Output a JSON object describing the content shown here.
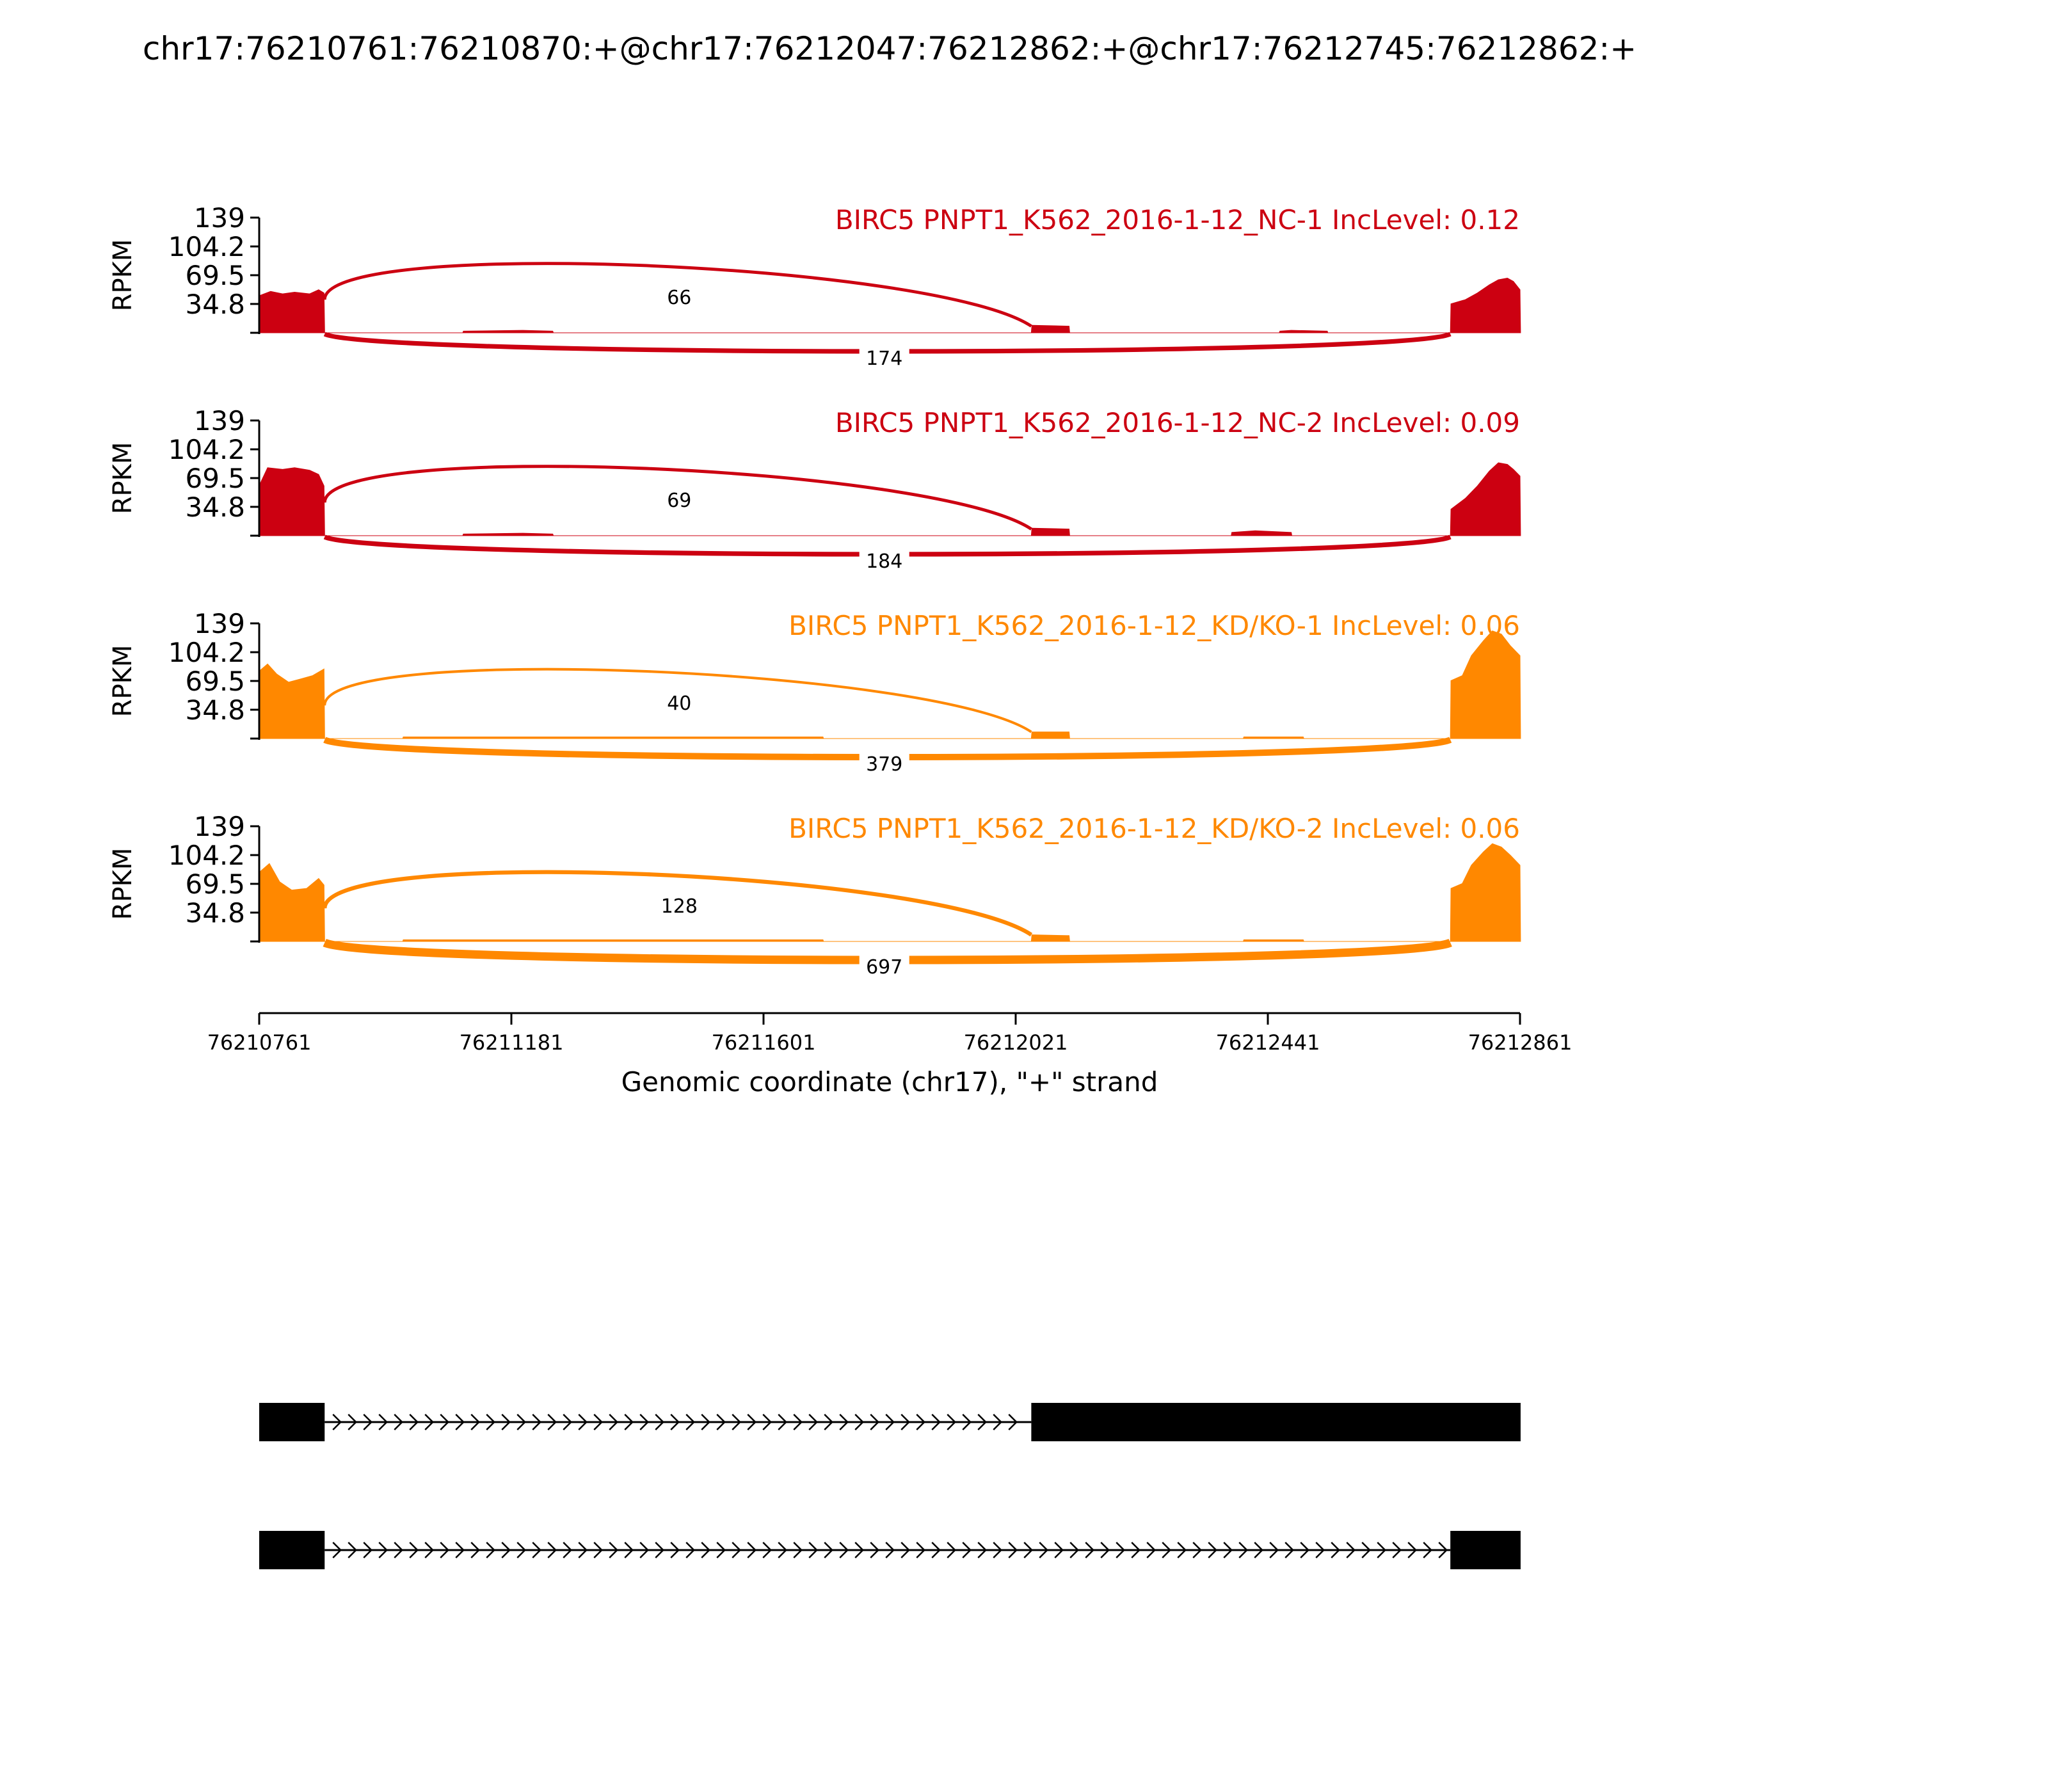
{
  "title": "chr17:76210761:76210870:+@chr17:76212047:76212862:+@chr17:76212745:76212862:+",
  "chart_data": {
    "type": "area",
    "xlabel": "Genomic coordinate (chr17), \"+\" strand",
    "ylabel": "RPKM",
    "xlim": [
      76210761,
      76212861
    ],
    "x_ticks": [
      "76210761",
      "76211181",
      "76211601",
      "76212021",
      "76212441",
      "76212861"
    ],
    "ylim": [
      0,
      139
    ],
    "y_ticks": [
      "139",
      "104.2",
      "69.5",
      "34.8"
    ],
    "y_tick_values": [
      139,
      104.2,
      69.5,
      34.8
    ],
    "exons": {
      "upstream": [
        76210761,
        76210870
      ],
      "skipped": [
        76212047,
        76212862
      ],
      "downstream": [
        76212745,
        76212862
      ]
    },
    "tracks": [
      {
        "label": "BIRC5 PNPT1_K562_2016-1-12_NC-1 IncLevel: 0.12",
        "color": "#cc0011",
        "junctions": [
          {
            "from": 76210870,
            "to": 76212047,
            "count": "66",
            "side": "above"
          },
          {
            "from": 76210870,
            "to": 76212745,
            "count": "174",
            "side": "below"
          }
        ],
        "coverage": [
          {
            "x": 76210761,
            "y": 0
          },
          {
            "x": 76210762,
            "y": 45
          },
          {
            "x": 76210780,
            "y": 50
          },
          {
            "x": 76210800,
            "y": 47
          },
          {
            "x": 76210820,
            "y": 49
          },
          {
            "x": 76210845,
            "y": 47
          },
          {
            "x": 76210860,
            "y": 52
          },
          {
            "x": 76210869,
            "y": 48
          },
          {
            "x": 76210870,
            "y": 0
          },
          {
            "x": 76211100,
            "y": 0
          },
          {
            "x": 76211101,
            "y": 2
          },
          {
            "x": 76211200,
            "y": 3
          },
          {
            "x": 76211250,
            "y": 2
          },
          {
            "x": 76211251,
            "y": 0
          },
          {
            "x": 76212047,
            "y": 0
          },
          {
            "x": 76212048,
            "y": 9
          },
          {
            "x": 76212110,
            "y": 8
          },
          {
            "x": 76212111,
            "y": 0
          },
          {
            "x": 76212460,
            "y": 0
          },
          {
            "x": 76212461,
            "y": 2
          },
          {
            "x": 76212480,
            "y": 3
          },
          {
            "x": 76212540,
            "y": 2
          },
          {
            "x": 76212541,
            "y": 0
          },
          {
            "x": 76212745,
            "y": 0
          },
          {
            "x": 76212746,
            "y": 35
          },
          {
            "x": 76212770,
            "y": 40
          },
          {
            "x": 76212790,
            "y": 48
          },
          {
            "x": 76212810,
            "y": 58
          },
          {
            "x": 76212825,
            "y": 64
          },
          {
            "x": 76212840,
            "y": 66
          },
          {
            "x": 76212850,
            "y": 62
          },
          {
            "x": 76212861,
            "y": 52
          },
          {
            "x": 76212862,
            "y": 0
          }
        ]
      },
      {
        "label": "BIRC5 PNPT1_K562_2016-1-12_NC-2 IncLevel: 0.09",
        "color": "#cc0011",
        "junctions": [
          {
            "from": 76210870,
            "to": 76212047,
            "count": "69",
            "side": "above"
          },
          {
            "from": 76210870,
            "to": 76212745,
            "count": "184",
            "side": "below"
          }
        ],
        "coverage": [
          {
            "x": 76210761,
            "y": 0
          },
          {
            "x": 76210762,
            "y": 62
          },
          {
            "x": 76210775,
            "y": 82
          },
          {
            "x": 76210800,
            "y": 80
          },
          {
            "x": 76210820,
            "y": 82
          },
          {
            "x": 76210845,
            "y": 79
          },
          {
            "x": 76210860,
            "y": 74
          },
          {
            "x": 76210869,
            "y": 60
          },
          {
            "x": 76210870,
            "y": 0
          },
          {
            "x": 76211100,
            "y": 0
          },
          {
            "x": 76211101,
            "y": 2
          },
          {
            "x": 76211200,
            "y": 3
          },
          {
            "x": 76211250,
            "y": 2
          },
          {
            "x": 76211251,
            "y": 0
          },
          {
            "x": 76212047,
            "y": 0
          },
          {
            "x": 76212048,
            "y": 9
          },
          {
            "x": 76212110,
            "y": 8
          },
          {
            "x": 76212111,
            "y": 0
          },
          {
            "x": 76212380,
            "y": 0
          },
          {
            "x": 76212381,
            "y": 4
          },
          {
            "x": 76212420,
            "y": 6
          },
          {
            "x": 76212480,
            "y": 4
          },
          {
            "x": 76212481,
            "y": 0
          },
          {
            "x": 76212745,
            "y": 0
          },
          {
            "x": 76212746,
            "y": 32
          },
          {
            "x": 76212770,
            "y": 45
          },
          {
            "x": 76212790,
            "y": 60
          },
          {
            "x": 76212810,
            "y": 78
          },
          {
            "x": 76212825,
            "y": 88
          },
          {
            "x": 76212840,
            "y": 86
          },
          {
            "x": 76212850,
            "y": 80
          },
          {
            "x": 76212861,
            "y": 72
          },
          {
            "x": 76212862,
            "y": 0
          }
        ]
      },
      {
        "label": "BIRC5 PNPT1_K562_2016-1-12_KD/KO-1 IncLevel: 0.06",
        "color": "#ff8800",
        "junctions": [
          {
            "from": 76210870,
            "to": 76212047,
            "count": "40",
            "side": "above"
          },
          {
            "from": 76210870,
            "to": 76212745,
            "count": "379",
            "side": "below"
          }
        ],
        "coverage": [
          {
            "x": 76210761,
            "y": 0
          },
          {
            "x": 76210762,
            "y": 82
          },
          {
            "x": 76210775,
            "y": 90
          },
          {
            "x": 76210790,
            "y": 78
          },
          {
            "x": 76210810,
            "y": 68
          },
          {
            "x": 76210830,
            "y": 72
          },
          {
            "x": 76210850,
            "y": 76
          },
          {
            "x": 76210869,
            "y": 84
          },
          {
            "x": 76210870,
            "y": 0
          },
          {
            "x": 76211000,
            "y": 0
          },
          {
            "x": 76211001,
            "y": 2
          },
          {
            "x": 76211700,
            "y": 2
          },
          {
            "x": 76211701,
            "y": 0
          },
          {
            "x": 76212047,
            "y": 0
          },
          {
            "x": 76212048,
            "y": 8
          },
          {
            "x": 76212110,
            "y": 8
          },
          {
            "x": 76212111,
            "y": 0
          },
          {
            "x": 76212400,
            "y": 0
          },
          {
            "x": 76212401,
            "y": 2
          },
          {
            "x": 76212500,
            "y": 2
          },
          {
            "x": 76212501,
            "y": 0
          },
          {
            "x": 76212745,
            "y": 0
          },
          {
            "x": 76212746,
            "y": 70
          },
          {
            "x": 76212765,
            "y": 76
          },
          {
            "x": 76212780,
            "y": 100
          },
          {
            "x": 76212800,
            "y": 118
          },
          {
            "x": 76212815,
            "y": 130
          },
          {
            "x": 76212830,
            "y": 126
          },
          {
            "x": 76212845,
            "y": 112
          },
          {
            "x": 76212861,
            "y": 100
          },
          {
            "x": 76212862,
            "y": 0
          }
        ]
      },
      {
        "label": "BIRC5 PNPT1_K562_2016-1-12_KD/KO-2 IncLevel: 0.06",
        "color": "#ff8800",
        "junctions": [
          {
            "from": 76210870,
            "to": 76212047,
            "count": "128",
            "side": "above"
          },
          {
            "from": 76210870,
            "to": 76212745,
            "count": "697",
            "side": "below"
          }
        ],
        "coverage": [
          {
            "x": 76210761,
            "y": 0
          },
          {
            "x": 76210762,
            "y": 84
          },
          {
            "x": 76210778,
            "y": 94
          },
          {
            "x": 76210795,
            "y": 72
          },
          {
            "x": 76210815,
            "y": 62
          },
          {
            "x": 76210840,
            "y": 64
          },
          {
            "x": 76210860,
            "y": 76
          },
          {
            "x": 76210869,
            "y": 68
          },
          {
            "x": 76210870,
            "y": 0
          },
          {
            "x": 76211000,
            "y": 0
          },
          {
            "x": 76211001,
            "y": 2
          },
          {
            "x": 76211700,
            "y": 2
          },
          {
            "x": 76211701,
            "y": 0
          },
          {
            "x": 76212047,
            "y": 0
          },
          {
            "x": 76212048,
            "y": 8
          },
          {
            "x": 76212110,
            "y": 7
          },
          {
            "x": 76212111,
            "y": 0
          },
          {
            "x": 76212400,
            "y": 0
          },
          {
            "x": 76212401,
            "y": 2
          },
          {
            "x": 76212500,
            "y": 2
          },
          {
            "x": 76212501,
            "y": 0
          },
          {
            "x": 76212745,
            "y": 0
          },
          {
            "x": 76212746,
            "y": 64
          },
          {
            "x": 76212765,
            "y": 70
          },
          {
            "x": 76212780,
            "y": 92
          },
          {
            "x": 76212800,
            "y": 108
          },
          {
            "x": 76212815,
            "y": 118
          },
          {
            "x": 76212830,
            "y": 114
          },
          {
            "x": 76212845,
            "y": 104
          },
          {
            "x": 76212861,
            "y": 92
          },
          {
            "x": 76212862,
            "y": 0
          }
        ]
      }
    ],
    "isoforms": [
      {
        "exons": [
          [
            76210761,
            76210870
          ],
          [
            76212047,
            76212862
          ]
        ]
      },
      {
        "exons": [
          [
            76210761,
            76210870
          ],
          [
            76212745,
            76212862
          ]
        ]
      }
    ]
  }
}
